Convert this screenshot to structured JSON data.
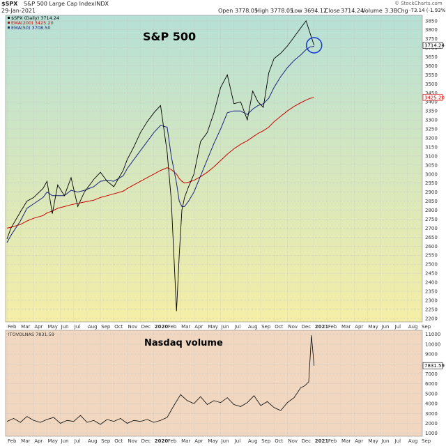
{
  "header": {
    "symbol": "$SPX",
    "index_name": "S&P 500 Large Cap Index",
    "exchange": "INDX",
    "date": "29-Jan-2021",
    "watermark": "© StockCharts.com",
    "open_label": "Open",
    "open": "3778.05",
    "high_label": "High",
    "high": "3778.05",
    "low_label": "Low",
    "low": "3694.12",
    "close_label": "Close",
    "close": "3714.24",
    "volume_label": "Volume",
    "volume": "3.3B",
    "chg_label": "Chg",
    "chg": "-73.14 (-1.93%)"
  },
  "top_panel": {
    "title": "S&P 500",
    "legend": [
      {
        "text": "$SPX (Daily) 3714.24",
        "color": "#000000"
      },
      {
        "text": "EMA(200) 3425.20",
        "color": "#cc0000"
      },
      {
        "text": "EMA(50) 3708.50",
        "color": "#1a237e"
      }
    ],
    "last_price_tag": "3714.24",
    "ema200_tag": "3425.20"
  },
  "bottom_panel": {
    "title": "Nasdaq volume",
    "legend": "!TOVOLNAS 7831.59",
    "last_tag": "7831.59"
  },
  "colors": {
    "bg_top_1": "#b6e0d6",
    "bg_top_2": "#f5eea6",
    "bg_bottom": "#f1d7bf",
    "price": "#000000",
    "ema50": "#1a237e",
    "ema200": "#cc0000",
    "highlight": "#1a3fd0"
  },
  "chart_data": [
    {
      "type": "line",
      "yticks": [
        2200,
        2250,
        2300,
        2350,
        2400,
        2450,
        2500,
        2550,
        2600,
        2650,
        2700,
        2750,
        2800,
        2850,
        2900,
        2950,
        3000,
        3050,
        3100,
        3150,
        3200,
        3250,
        3300,
        3350,
        3400,
        3450,
        3500,
        3550,
        3600,
        3650,
        3700,
        3750,
        3800,
        3850
      ],
      "ylim": [
        2180,
        3880
      ],
      "xlabels": [
        "Feb",
        "Mar",
        "Apr",
        "May",
        "Jun",
        "Jul",
        "Aug",
        "Sep",
        "Oct",
        "Nov",
        "Dec",
        "2020",
        "Feb",
        "Mar",
        "Apr",
        "May",
        "Jun",
        "Jul",
        "Aug",
        "Sep",
        "Oct",
        "Nov",
        "Dec",
        "2021",
        "Feb",
        "Mar",
        "Apr",
        "May",
        "Jun",
        "Jul",
        "Aug",
        "Sep"
      ],
      "x": [
        0,
        0.3,
        1,
        1.5,
        2,
        2.7,
        3,
        3.4,
        3.8,
        4.3,
        4.8,
        5.3,
        5.8,
        6.5,
        7,
        7.5,
        8,
        8.7,
        9,
        9.5,
        10,
        10.5,
        11,
        11.5,
        12,
        12.3,
        12.7,
        12.9,
        13.1,
        13.3,
        13.6,
        14,
        14.5,
        15,
        15.5,
        16,
        16.5,
        17,
        17.5,
        18,
        18.4,
        18.8,
        19.2,
        19.6,
        20,
        20.5,
        21,
        21.5,
        22,
        22.4,
        22.7,
        23
      ],
      "series": [
        {
          "role": "price",
          "values": [
            2640,
            2700,
            2790,
            2850,
            2870,
            2920,
            2960,
            2780,
            2940,
            2880,
            2980,
            2820,
            2900,
            2970,
            3010,
            2960,
            2930,
            3020,
            3080,
            3150,
            3230,
            3290,
            3340,
            3380,
            3120,
            2860,
            2240,
            2550,
            2800,
            2870,
            2930,
            3000,
            3180,
            3230,
            3340,
            3480,
            3550,
            3390,
            3400,
            3300,
            3460,
            3400,
            3370,
            3560,
            3640,
            3670,
            3710,
            3760,
            3810,
            3850,
            3780,
            3714
          ]
        },
        {
          "role": "ema50",
          "values": [
            2620,
            2660,
            2740,
            2810,
            2835,
            2870,
            2900,
            2880,
            2880,
            2880,
            2910,
            2900,
            2910,
            2930,
            2960,
            2965,
            2960,
            2990,
            3030,
            3080,
            3130,
            3180,
            3230,
            3270,
            3260,
            3100,
            2950,
            2850,
            2820,
            2820,
            2850,
            2900,
            2990,
            3080,
            3170,
            3250,
            3340,
            3350,
            3350,
            3330,
            3360,
            3380,
            3390,
            3420,
            3480,
            3540,
            3590,
            3630,
            3660,
            3690,
            3705,
            3708
          ]
        },
        {
          "role": "ema200",
          "values": [
            2700,
            2705,
            2720,
            2740,
            2755,
            2770,
            2785,
            2795,
            2810,
            2820,
            2830,
            2838,
            2845,
            2855,
            2870,
            2880,
            2890,
            2905,
            2920,
            2940,
            2960,
            2980,
            3000,
            3020,
            3035,
            3025,
            3000,
            2975,
            2960,
            2950,
            2955,
            2965,
            2985,
            3010,
            3040,
            3075,
            3110,
            3140,
            3165,
            3185,
            3205,
            3225,
            3240,
            3260,
            3290,
            3320,
            3350,
            3375,
            3395,
            3410,
            3420,
            3425
          ]
        }
      ]
    },
    {
      "type": "line",
      "yticks": [
        1000,
        2000,
        3000,
        4000,
        5000,
        6000,
        7000,
        8000,
        9000,
        10000,
        11000
      ],
      "ylim": [
        700,
        11400
      ],
      "xlabels": [
        "Feb",
        "Mar",
        "Apr",
        "May",
        "Jun",
        "Jul",
        "Aug",
        "Sep",
        "Oct",
        "Nov",
        "Dec",
        "2020",
        "Feb",
        "Mar",
        "Apr",
        "May",
        "Jun",
        "Jul",
        "Aug",
        "Sep",
        "Oct",
        "Nov",
        "Dec",
        "2021",
        "Feb",
        "Mar",
        "Apr",
        "May",
        "Jun",
        "Jul",
        "Aug",
        "Sep"
      ],
      "x": [
        0,
        0.5,
        1,
        1.5,
        2,
        2.5,
        3,
        3.5,
        4,
        4.5,
        5,
        5.5,
        6,
        6.5,
        7,
        7.5,
        8,
        8.5,
        9,
        9.5,
        10,
        10.5,
        11,
        11.5,
        12,
        12.5,
        13,
        13.5,
        14,
        14.5,
        15,
        15.5,
        16,
        16.5,
        17,
        17.5,
        18,
        18.5,
        19,
        19.5,
        20,
        20.5,
        21,
        21.5,
        22,
        22.3,
        22.6,
        22.8,
        23
      ],
      "series": [
        {
          "role": "volume",
          "values": [
            2200,
            2500,
            2100,
            2700,
            2300,
            2100,
            2400,
            2600,
            2000,
            2300,
            2200,
            2800,
            2100,
            2300,
            1900,
            2400,
            2200,
            2500,
            2000,
            2300,
            2200,
            2400,
            2100,
            2300,
            2600,
            3800,
            4900,
            4300,
            4000,
            4700,
            3900,
            4300,
            4100,
            4600,
            3900,
            3700,
            4100,
            4800,
            3800,
            4200,
            3600,
            3300,
            4100,
            4600,
            5600,
            5800,
            6200,
            10900,
            7831
          ]
        }
      ]
    }
  ]
}
